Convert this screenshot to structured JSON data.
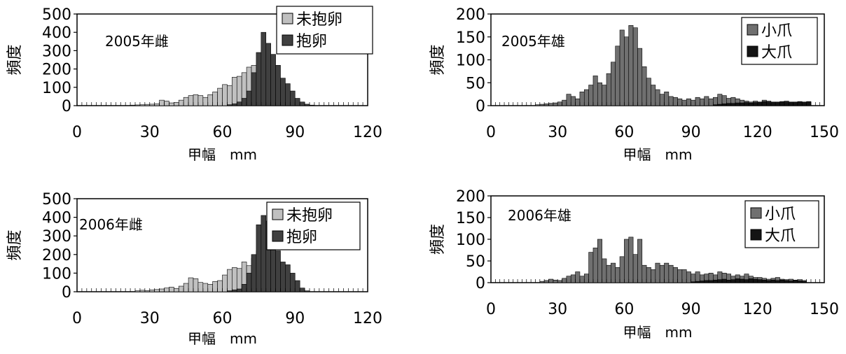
{
  "chart_data": [
    {
      "type": "bar",
      "title": "2005年雌",
      "xlabel": "甲幅　mm",
      "ylabel": "頻度",
      "xlim": [
        0,
        120
      ],
      "ylim": [
        0,
        500
      ],
      "x_ticks": [
        0,
        30,
        60,
        90,
        120
      ],
      "y_ticks": [
        0,
        100,
        200,
        300,
        400,
        500
      ],
      "bin_width": 2,
      "legend_position": "top-right",
      "series": [
        {
          "name": "未抱卵",
          "color": "#c0c0c0",
          "x": [
            22,
            24,
            26,
            28,
            30,
            32,
            34,
            36,
            38,
            40,
            42,
            44,
            46,
            48,
            50,
            52,
            54,
            56,
            58,
            60,
            62,
            64,
            66,
            68,
            70,
            72,
            74,
            76,
            78,
            80,
            82,
            84
          ],
          "values": [
            3,
            4,
            5,
            7,
            8,
            10,
            30,
            25,
            15,
            18,
            30,
            45,
            55,
            60,
            55,
            45,
            60,
            75,
            95,
            115,
            110,
            155,
            160,
            180,
            210,
            220,
            200,
            180,
            120,
            60,
            20,
            5
          ]
        },
        {
          "name": "抱卵",
          "color": "#404040",
          "x": [
            62,
            64,
            66,
            68,
            70,
            72,
            74,
            76,
            78,
            80,
            82,
            84,
            86,
            88,
            90,
            92,
            94,
            96
          ],
          "values": [
            5,
            10,
            20,
            40,
            80,
            180,
            290,
            400,
            340,
            280,
            220,
            150,
            120,
            80,
            40,
            20,
            8,
            3
          ]
        }
      ]
    },
    {
      "type": "bar",
      "title": "2005年雄",
      "xlabel": "甲幅　mm",
      "ylabel": "頻度",
      "xlim": [
        0,
        150
      ],
      "ylim": [
        0,
        200
      ],
      "x_ticks": [
        0,
        30,
        60,
        90,
        120,
        150
      ],
      "y_ticks": [
        0,
        50,
        100,
        150,
        200
      ],
      "bin_width": 2,
      "legend_position": "top-right",
      "series": [
        {
          "name": "小爪",
          "color": "#707070",
          "x": [
            20,
            22,
            24,
            26,
            28,
            30,
            32,
            34,
            36,
            38,
            40,
            42,
            44,
            46,
            48,
            50,
            52,
            54,
            56,
            58,
            60,
            62,
            64,
            66,
            68,
            70,
            72,
            74,
            76,
            78,
            80,
            82,
            84,
            86,
            88,
            90,
            92,
            94,
            96,
            98,
            100,
            102,
            104,
            106,
            108,
            110,
            112,
            114,
            116,
            118,
            120,
            122,
            124,
            126,
            128,
            130,
            132,
            134,
            136,
            138,
            140,
            142
          ],
          "values": [
            2,
            3,
            4,
            5,
            6,
            8,
            12,
            25,
            20,
            15,
            30,
            35,
            45,
            65,
            50,
            45,
            70,
            95,
            130,
            165,
            150,
            175,
            170,
            125,
            85,
            60,
            45,
            35,
            25,
            30,
            20,
            18,
            15,
            12,
            15,
            12,
            18,
            15,
            20,
            15,
            18,
            25,
            22,
            16,
            18,
            15,
            12,
            10,
            8,
            10,
            8,
            12,
            10,
            8,
            6,
            8,
            10,
            8,
            6,
            8,
            6,
            8
          ]
        },
        {
          "name": "大爪",
          "color": "#141414",
          "x": [
            100,
            102,
            104,
            106,
            108,
            110,
            112,
            114,
            116,
            118,
            120,
            122,
            124,
            126,
            128,
            130,
            132,
            134,
            136,
            138,
            140,
            142
          ],
          "values": [
            2,
            3,
            4,
            5,
            5,
            6,
            6,
            7,
            6,
            7,
            8,
            9,
            8,
            7,
            8,
            9,
            8,
            7,
            8,
            9,
            8,
            9
          ]
        }
      ]
    },
    {
      "type": "bar",
      "title": "2006年雌",
      "xlabel": "甲幅　mm",
      "ylabel": "頻度",
      "xlim": [
        0,
        120
      ],
      "ylim": [
        0,
        500
      ],
      "x_ticks": [
        0,
        30,
        60,
        90,
        120
      ],
      "y_ticks": [
        0,
        100,
        200,
        300,
        400,
        500
      ],
      "bin_width": 2,
      "legend_position": "top-right",
      "series": [
        {
          "name": "未抱卵",
          "color": "#c0c0c0",
          "x": [
            24,
            26,
            28,
            30,
            32,
            34,
            36,
            38,
            40,
            42,
            44,
            46,
            48,
            50,
            52,
            54,
            56,
            58,
            60,
            62,
            64,
            66,
            68,
            70,
            72,
            74,
            76,
            78,
            80,
            82
          ],
          "values": [
            5,
            8,
            6,
            10,
            12,
            15,
            20,
            25,
            18,
            30,
            45,
            75,
            70,
            50,
            45,
            40,
            55,
            60,
            90,
            120,
            130,
            125,
            160,
            140,
            180,
            220,
            200,
            170,
            120,
            60
          ]
        },
        {
          "name": "抱卵",
          "color": "#404040",
          "x": [
            62,
            64,
            66,
            68,
            70,
            72,
            74,
            76,
            78,
            80,
            82,
            84,
            86,
            88,
            90,
            92,
            94
          ],
          "values": [
            5,
            10,
            15,
            40,
            100,
            200,
            360,
            410,
            380,
            320,
            220,
            160,
            145,
            100,
            60,
            20,
            5
          ]
        }
      ]
    },
    {
      "type": "bar",
      "title": "2006年雄",
      "xlabel": "甲幅　mm",
      "ylabel": "頻度",
      "xlim": [
        0,
        150
      ],
      "ylim": [
        0,
        200
      ],
      "x_ticks": [
        0,
        30,
        60,
        90,
        120,
        150
      ],
      "y_ticks": [
        0,
        50,
        100,
        150,
        200
      ],
      "bin_width": 2,
      "legend_position": "top-right",
      "series": [
        {
          "name": "小爪",
          "color": "#707070",
          "x": [
            22,
            24,
            26,
            28,
            30,
            32,
            34,
            36,
            38,
            40,
            42,
            44,
            46,
            48,
            50,
            52,
            54,
            56,
            58,
            60,
            62,
            64,
            66,
            68,
            70,
            72,
            74,
            76,
            78,
            80,
            82,
            84,
            86,
            88,
            90,
            92,
            94,
            96,
            98,
            100,
            102,
            104,
            106,
            108,
            110,
            112,
            114,
            116,
            118,
            120,
            122,
            124,
            126,
            128,
            130,
            132,
            134,
            136,
            138,
            140
          ],
          "values": [
            3,
            5,
            8,
            6,
            5,
            10,
            15,
            18,
            25,
            15,
            20,
            70,
            80,
            100,
            55,
            40,
            45,
            35,
            60,
            100,
            105,
            65,
            100,
            40,
            35,
            30,
            45,
            40,
            45,
            40,
            35,
            30,
            30,
            25,
            20,
            25,
            18,
            20,
            22,
            18,
            25,
            22,
            20,
            15,
            18,
            15,
            20,
            15,
            12,
            12,
            10,
            8,
            10,
            12,
            8,
            7,
            8,
            6,
            7,
            5
          ]
        },
        {
          "name": "大爪",
          "color": "#141414",
          "x": [
            90,
            92,
            94,
            96,
            98,
            100,
            102,
            104,
            106,
            108,
            110,
            112,
            114,
            116,
            118,
            120,
            122,
            124,
            126,
            128,
            130,
            132,
            134,
            136,
            138,
            140
          ],
          "values": [
            2,
            3,
            4,
            5,
            5,
            6,
            7,
            8,
            6,
            7,
            9,
            8,
            7,
            9,
            8,
            7,
            6,
            5,
            6,
            5,
            6,
            5,
            4,
            5,
            4,
            3
          ]
        }
      ]
    }
  ]
}
